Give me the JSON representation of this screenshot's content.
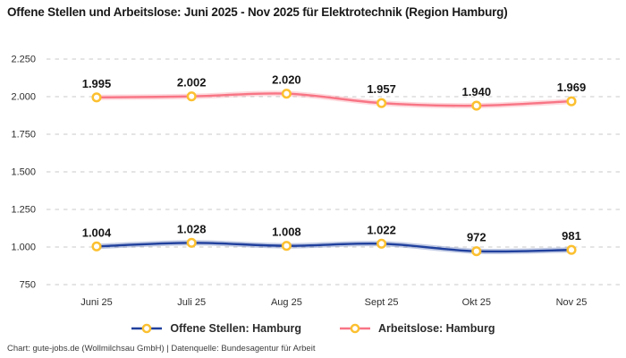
{
  "title": "Offene Stellen und Arbeitslose: Juni 2025 - Nov 2025 für Elektrotechnik (Region Hamburg)",
  "footer": "Chart: gute-jobs.de (Wollmilchsau GmbH) | Datenquelle: Bundesagentur für Arbeit",
  "colors": {
    "grid": "#c9c9c9",
    "tick_text": "#2e2e2e",
    "data_label_text": "#161616",
    "marker_ring": "#fcc030",
    "marker_fill": "#ffffff",
    "open_positions_line": "#20409d",
    "unemployed_line": "#f87585"
  },
  "chart_data": {
    "type": "line",
    "title": "Offene Stellen und Arbeitslose: Juni 2025 - Nov 2025 für Elektrotechnik (Region Hamburg)",
    "categories": [
      "Juni 25",
      "Juli 25",
      "Aug 25",
      "Sept 25",
      "Okt 25",
      "Nov 25"
    ],
    "series": [
      {
        "name": "Offene Stellen: Hamburg",
        "color": "#20409d",
        "values": [
          1004,
          1028,
          1008,
          1022,
          972,
          981
        ],
        "labels": [
          "1.004",
          "1.028",
          "1.008",
          "1.022",
          "972",
          "981"
        ]
      },
      {
        "name": "Arbeitslose: Hamburg",
        "color": "#f87585",
        "values": [
          1995,
          2002,
          2020,
          1957,
          1940,
          1969
        ],
        "labels": [
          "1.995",
          "2.002",
          "2.020",
          "1.957",
          "1.940",
          "1.969"
        ]
      }
    ],
    "y_ticks": [
      {
        "value": 2250,
        "label": "2.250"
      },
      {
        "value": 2000,
        "label": "2.000"
      },
      {
        "value": 1750,
        "label": "1.750"
      },
      {
        "value": 1500,
        "label": "1.500"
      },
      {
        "value": 1250,
        "label": "1.250"
      },
      {
        "value": 1000,
        "label": "1.000"
      },
      {
        "value": 750,
        "label": "750"
      }
    ],
    "ylim": [
      750,
      2250
    ],
    "xlabel": "",
    "ylabel": "",
    "grid": "horizontal-dashed",
    "legend_position": "bottom",
    "marker_style": "ring"
  }
}
